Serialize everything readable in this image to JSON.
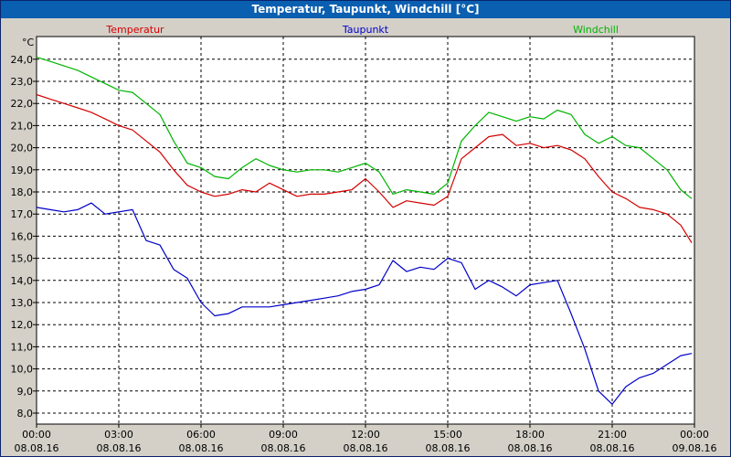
{
  "window": {
    "title": "Temperatur, Taupunkt, Windchill [°C]"
  },
  "colors": {
    "temperature": "#d40000",
    "dewpoint": "#0000c8",
    "windchill": "#00b400",
    "grid": "#000000",
    "plot_bg": "#ffffff"
  },
  "chart_data": {
    "type": "line",
    "title": "Temperatur, Taupunkt, Windchill [°C]",
    "ylabel": "°C",
    "xlabel": "",
    "ylim": [
      7.5,
      25.0
    ],
    "xlim": [
      0,
      24
    ],
    "grid": true,
    "legend_placement": "top",
    "y_ticks": [
      "8,0",
      "9,0",
      "10,0",
      "11,0",
      "12,0",
      "13,0",
      "14,0",
      "15,0",
      "16,0",
      "17,0",
      "18,0",
      "19,0",
      "20,0",
      "21,0",
      "22,0",
      "23,0",
      "24,0"
    ],
    "x_ticks": [
      {
        "time": "00:00",
        "date": "08.08.16"
      },
      {
        "time": "03:00",
        "date": "08.08.16"
      },
      {
        "time": "06:00",
        "date": "08.08.16"
      },
      {
        "time": "09:00",
        "date": "08.08.16"
      },
      {
        "time": "12:00",
        "date": "08.08.16"
      },
      {
        "time": "15:00",
        "date": "08.08.16"
      },
      {
        "time": "18:00",
        "date": "08.08.16"
      },
      {
        "time": "21:00",
        "date": "08.08.16"
      },
      {
        "time": "00:00",
        "date": "09.08.16"
      }
    ],
    "series": [
      {
        "name": "Temperatur",
        "color": "#d40000",
        "x": [
          0,
          0.5,
          1,
          1.5,
          2,
          2.5,
          3,
          3.5,
          4,
          4.5,
          5,
          5.5,
          6,
          6.5,
          7,
          7.5,
          8,
          8.5,
          9,
          9.5,
          10,
          10.5,
          11,
          11.5,
          12,
          12.5,
          13,
          13.5,
          14,
          14.5,
          15,
          15.5,
          16,
          16.5,
          17,
          17.5,
          18,
          18.5,
          19,
          19.5,
          20,
          20.5,
          21,
          21.5,
          22,
          22.5,
          23,
          23.5,
          23.9
        ],
        "y": [
          22.4,
          22.2,
          22.0,
          21.8,
          21.6,
          21.3,
          21.0,
          20.8,
          20.3,
          19.8,
          19.0,
          18.3,
          18.0,
          17.8,
          17.9,
          18.1,
          18.0,
          18.4,
          18.1,
          17.8,
          17.9,
          17.9,
          18.0,
          18.1,
          18.6,
          18.0,
          17.3,
          17.6,
          17.5,
          17.4,
          17.8,
          19.5,
          20.0,
          20.5,
          20.6,
          20.1,
          20.2,
          20.0,
          20.1,
          19.9,
          19.5,
          18.7,
          18.0,
          17.7,
          17.3,
          17.2,
          17.0,
          16.5,
          15.7
        ]
      },
      {
        "name": "Taupunkt",
        "color": "#0000c8",
        "x": [
          0,
          0.5,
          1,
          1.5,
          2,
          2.5,
          3,
          3.5,
          4,
          4.5,
          5,
          5.5,
          6,
          6.5,
          7,
          7.5,
          8,
          8.5,
          9,
          9.5,
          10,
          10.5,
          11,
          11.5,
          12,
          12.5,
          13,
          13.5,
          14,
          14.5,
          15,
          15.5,
          16,
          16.5,
          17,
          17.5,
          18,
          18.5,
          19,
          19.5,
          20,
          20.5,
          21,
          21.5,
          22,
          22.5,
          23,
          23.5,
          23.9
        ],
        "y": [
          17.3,
          17.2,
          17.1,
          17.2,
          17.5,
          17.0,
          17.1,
          17.2,
          15.8,
          15.6,
          14.5,
          14.1,
          13.0,
          12.4,
          12.5,
          12.8,
          12.8,
          12.8,
          12.9,
          13.0,
          13.1,
          13.2,
          13.3,
          13.5,
          13.6,
          13.8,
          14.9,
          14.4,
          14.6,
          14.5,
          15.0,
          14.8,
          13.6,
          14.0,
          13.7,
          13.3,
          13.8,
          13.9,
          14.0,
          12.5,
          10.9,
          9.0,
          8.4,
          9.2,
          9.6,
          9.8,
          10.2,
          10.6,
          10.7
        ]
      },
      {
        "name": "Windchill",
        "color": "#00b400",
        "x": [
          0,
          0.5,
          1,
          1.5,
          2,
          2.5,
          3,
          3.5,
          4,
          4.5,
          5,
          5.5,
          6,
          6.5,
          7,
          7.5,
          8,
          8.5,
          9,
          9.5,
          10,
          10.5,
          11,
          11.5,
          12,
          12.5,
          13,
          13.5,
          14,
          14.5,
          15,
          15.5,
          16,
          16.5,
          17,
          17.5,
          18,
          18.5,
          19,
          19.5,
          20,
          20.5,
          21,
          21.5,
          22,
          22.5,
          23,
          23.5,
          23.9
        ],
        "y": [
          24.1,
          23.9,
          23.7,
          23.5,
          23.2,
          22.9,
          22.6,
          22.5,
          22.0,
          21.5,
          20.3,
          19.3,
          19.1,
          18.7,
          18.6,
          19.1,
          19.5,
          19.2,
          19.0,
          18.9,
          19.0,
          19.0,
          18.9,
          19.1,
          19.3,
          18.9,
          17.9,
          18.1,
          18.0,
          17.9,
          18.4,
          20.3,
          21.0,
          21.6,
          21.4,
          21.2,
          21.4,
          21.3,
          21.7,
          21.5,
          20.6,
          20.2,
          20.5,
          20.1,
          20.0,
          19.5,
          19.0,
          18.1,
          17.7
        ]
      }
    ]
  }
}
